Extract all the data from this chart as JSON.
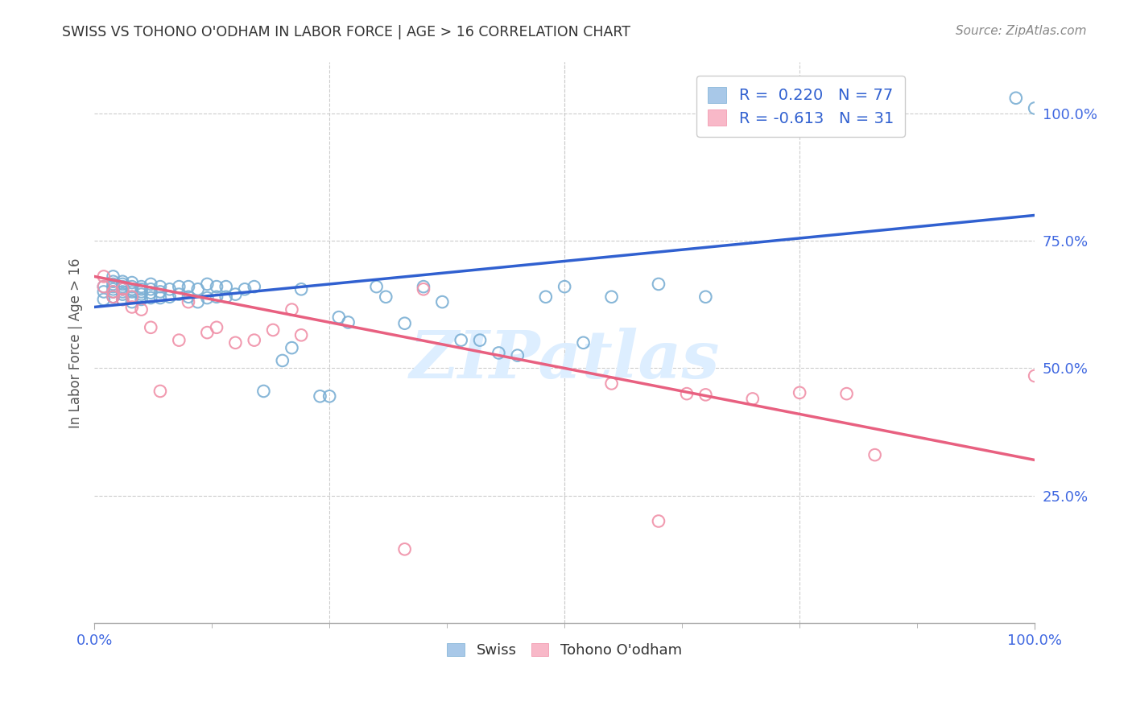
{
  "title": "SWISS VS TOHONO O'ODHAM IN LABOR FORCE | AGE > 16 CORRELATION CHART",
  "source": "Source: ZipAtlas.com",
  "ylabel": "In Labor Force | Age > 16",
  "xlim": [
    0.0,
    1.0
  ],
  "ylim": [
    0.0,
    1.1
  ],
  "ytick_positions": [
    0.25,
    0.5,
    0.75,
    1.0
  ],
  "ytick_labels": [
    "25.0%",
    "50.0%",
    "75.0%",
    "100.0%"
  ],
  "xtick_positions": [
    0.0,
    1.0
  ],
  "xtick_labels": [
    "0.0%",
    "100.0%"
  ],
  "grid_color": "#cccccc",
  "swiss_color": "#a8c8e8",
  "swiss_edge_color": "#7bafd4",
  "tohono_color": "#f8b8c8",
  "tohono_edge_color": "#f090a8",
  "swiss_line_color": "#3060d0",
  "tohono_line_color": "#e86080",
  "watermark_text": "ZIPatlas",
  "watermark_color": "#ddeeff",
  "legend_box_colors": [
    "#a8c8e8",
    "#f8b8c8"
  ],
  "legend_box_edges": [
    "#7bafd4",
    "#f090a8"
  ],
  "legend_r_color": "#3060d0",
  "legend_n_color": "#3060d0",
  "bottom_legend_labels": [
    "Swiss",
    "Tohono O'odham"
  ],
  "swiss_x": [
    0.01,
    0.01,
    0.01,
    0.02,
    0.02,
    0.02,
    0.02,
    0.02,
    0.02,
    0.02,
    0.03,
    0.03,
    0.03,
    0.03,
    0.03,
    0.03,
    0.03,
    0.04,
    0.04,
    0.04,
    0.04,
    0.04,
    0.04,
    0.05,
    0.05,
    0.05,
    0.05,
    0.05,
    0.06,
    0.06,
    0.06,
    0.06,
    0.07,
    0.07,
    0.07,
    0.08,
    0.08,
    0.09,
    0.09,
    0.1,
    0.1,
    0.11,
    0.11,
    0.12,
    0.12,
    0.13,
    0.13,
    0.14,
    0.14,
    0.15,
    0.16,
    0.17,
    0.18,
    0.2,
    0.21,
    0.22,
    0.24,
    0.25,
    0.26,
    0.27,
    0.3,
    0.31,
    0.33,
    0.35,
    0.37,
    0.39,
    0.41,
    0.43,
    0.45,
    0.48,
    0.5,
    0.52,
    0.55,
    0.6,
    0.65,
    0.98,
    1.0
  ],
  "swiss_y": [
    0.635,
    0.65,
    0.66,
    0.64,
    0.65,
    0.655,
    0.66,
    0.665,
    0.67,
    0.68,
    0.635,
    0.645,
    0.65,
    0.655,
    0.66,
    0.665,
    0.67,
    0.63,
    0.64,
    0.65,
    0.655,
    0.66,
    0.668,
    0.635,
    0.645,
    0.65,
    0.655,
    0.66,
    0.638,
    0.648,
    0.655,
    0.665,
    0.638,
    0.65,
    0.66,
    0.64,
    0.655,
    0.645,
    0.66,
    0.64,
    0.66,
    0.63,
    0.655,
    0.638,
    0.665,
    0.64,
    0.66,
    0.64,
    0.66,
    0.645,
    0.655,
    0.66,
    0.455,
    0.515,
    0.54,
    0.655,
    0.445,
    0.445,
    0.6,
    0.59,
    0.66,
    0.64,
    0.588,
    0.66,
    0.63,
    0.555,
    0.555,
    0.53,
    0.525,
    0.64,
    0.66,
    0.55,
    0.64,
    0.665,
    0.64,
    1.03,
    1.01
  ],
  "tohono_x": [
    0.01,
    0.01,
    0.02,
    0.02,
    0.03,
    0.03,
    0.04,
    0.04,
    0.05,
    0.06,
    0.07,
    0.09,
    0.1,
    0.12,
    0.13,
    0.15,
    0.17,
    0.19,
    0.21,
    0.22,
    0.33,
    0.35,
    0.55,
    0.6,
    0.63,
    0.65,
    0.7,
    0.75,
    0.8,
    0.83,
    1.0
  ],
  "tohono_y": [
    0.66,
    0.68,
    0.64,
    0.65,
    0.635,
    0.655,
    0.62,
    0.64,
    0.615,
    0.58,
    0.455,
    0.555,
    0.63,
    0.57,
    0.58,
    0.55,
    0.555,
    0.575,
    0.615,
    0.565,
    0.145,
    0.655,
    0.47,
    0.2,
    0.45,
    0.448,
    0.44,
    0.452,
    0.45,
    0.33,
    0.485
  ],
  "swiss_trend_x": [
    0.0,
    1.0
  ],
  "swiss_trend_y": [
    0.62,
    0.8
  ],
  "tohono_trend_x": [
    0.0,
    1.0
  ],
  "tohono_trend_y": [
    0.68,
    0.32
  ]
}
